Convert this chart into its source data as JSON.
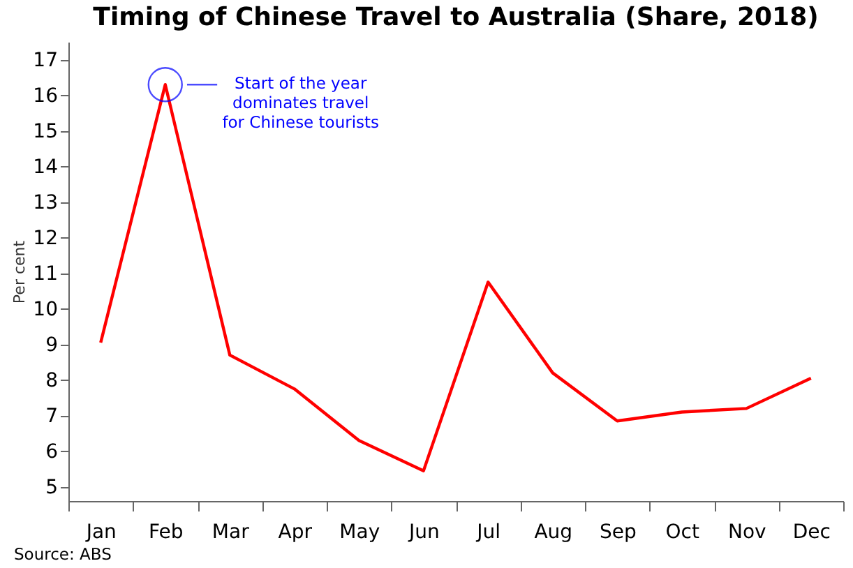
{
  "chart_data": {
    "type": "line",
    "title": "Timing of Chinese Travel to Australia (Share, 2018)",
    "ylabel": "Per cent",
    "categories": [
      "Jan",
      "Feb",
      "Mar",
      "Apr",
      "May",
      "Jun",
      "Jul",
      "Aug",
      "Sep",
      "Oct",
      "Nov",
      "Dec"
    ],
    "series": [
      {
        "color": "#ff0000",
        "values": [
          9.05,
          16.3,
          8.7,
          7.75,
          6.3,
          5.45,
          10.75,
          8.2,
          6.85,
          7.1,
          7.2,
          8.05
        ]
      }
    ],
    "ylim": [
      4.6,
      17.5
    ],
    "yticks": [
      5,
      6,
      7,
      8,
      9,
      10,
      11,
      12,
      13,
      14,
      15,
      16,
      17
    ],
    "grid": false,
    "marker": "none",
    "line_style": "solid",
    "annotations": [
      "Start of the year\ndominates travel\nfor Chinese tourists",
      "Source: ABS"
    ]
  }
}
